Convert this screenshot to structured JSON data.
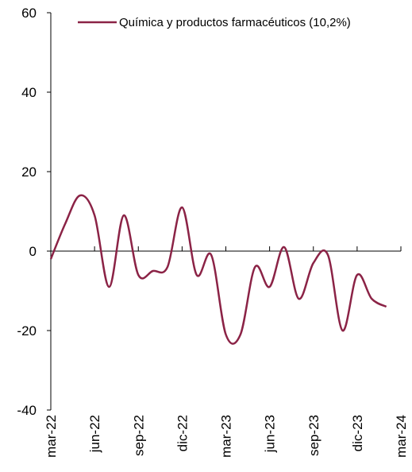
{
  "chart_data": {
    "type": "line",
    "title": "",
    "xlabel": "",
    "ylabel": "",
    "ylim": [
      -40,
      60
    ],
    "yticks": [
      "60",
      "40",
      "20",
      "0",
      "-20",
      "-40"
    ],
    "x_tick_labels": [
      "mar-22",
      "jun-22",
      "sep-22",
      "dic-22",
      "mar-23",
      "jun-23",
      "sep-23",
      "dic-23",
      "mar-24"
    ],
    "x": [
      "mar-22",
      "abr-22",
      "may-22",
      "jun-22",
      "jul-22",
      "ago-22",
      "sep-22",
      "oct-22",
      "nov-22",
      "dic-22",
      "ene-23",
      "feb-23",
      "mar-23",
      "abr-23",
      "may-23",
      "jun-23",
      "jul-23",
      "ago-23",
      "sep-23",
      "oct-23",
      "nov-23",
      "dic-23",
      "ene-24",
      "feb-24",
      "mar-24"
    ],
    "legend_position": "top",
    "grid": false,
    "series": [
      {
        "name": "Química y productos farmacéuticos (10,2%)",
        "color": "#8B2346",
        "values": [
          -2,
          7,
          14,
          9,
          -9,
          9,
          -6,
          -5,
          -4,
          11,
          -6,
          -1,
          -21,
          -21,
          -4,
          -9,
          1,
          -12,
          -3,
          -1,
          -20,
          -6,
          -12,
          -14,
          null
        ]
      }
    ]
  }
}
